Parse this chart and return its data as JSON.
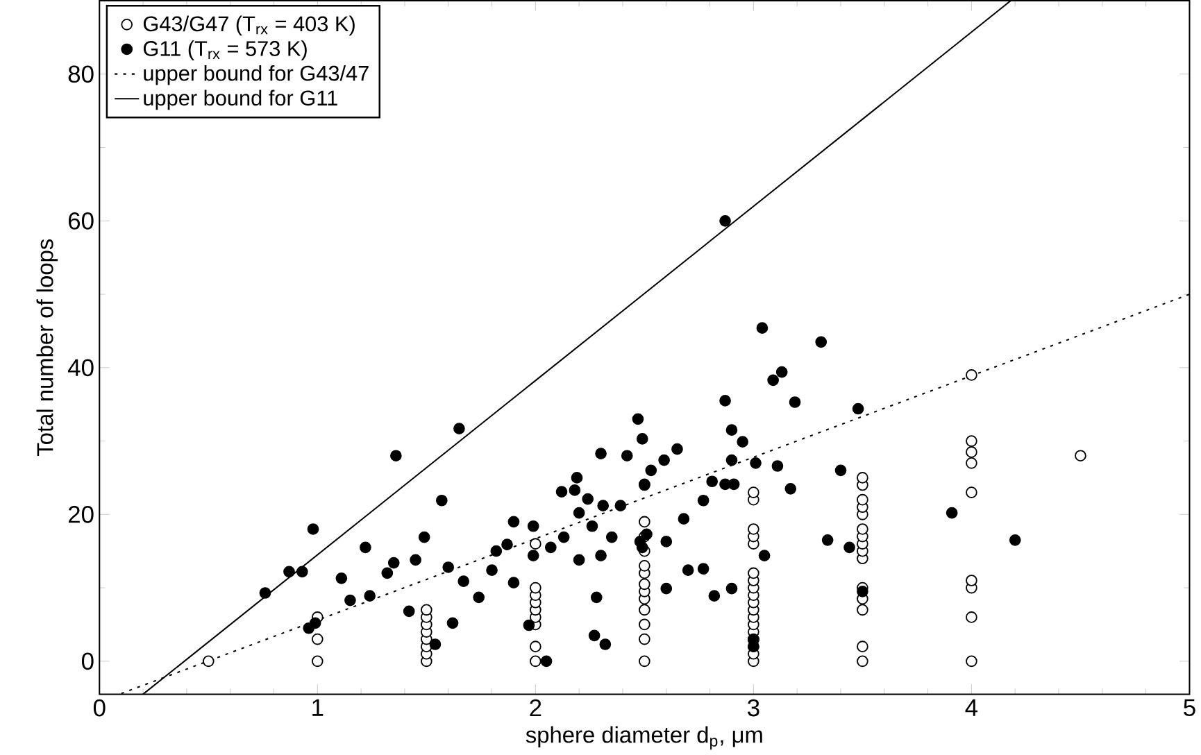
{
  "chart_data": {
    "type": "scatter",
    "xlabel": "sphere diameter d$_{p}$, μm",
    "ylabel": "Total number of loops",
    "xlim": [
      0,
      5
    ],
    "ylim": [
      -4.5,
      90
    ],
    "xticks": [
      0,
      1,
      2,
      3,
      4,
      5
    ],
    "yticks": [
      0,
      20,
      40,
      60,
      80
    ],
    "legend": "top left",
    "marker": "circle",
    "series": [
      {
        "name": "G43/G47 (T$_{rx}$ = 403 K)",
        "color": "#000000",
        "x": [
          0.5,
          1,
          1,
          1,
          1.5,
          1.5,
          1.5,
          1.5,
          1.5,
          1.5,
          1.5,
          1.5,
          2,
          2,
          2,
          2,
          2,
          2,
          2,
          2,
          2,
          2.5,
          2.5,
          2.5,
          2.5,
          2.5,
          2.5,
          2.5,
          2.5,
          2.5,
          2.5,
          2.5,
          2.5,
          2.5,
          3,
          3,
          3,
          3,
          3,
          3,
          3,
          3,
          3,
          3,
          3,
          3,
          3,
          3,
          3,
          3,
          3,
          3,
          3.5,
          3.5,
          3.5,
          3.5,
          3.5,
          3.5,
          3.5,
          3.5,
          3.5,
          3.5,
          3.5,
          3.5,
          3.5,
          3.5,
          3.5,
          4,
          4,
          4,
          4,
          4,
          4,
          4,
          4,
          4,
          4.5
        ],
        "values": [
          0,
          0,
          3,
          6,
          0,
          1,
          2,
          3,
          4,
          5,
          6,
          7,
          0,
          2,
          5,
          6,
          7,
          8,
          9,
          10,
          16,
          0,
          3,
          5,
          7,
          8.5,
          9.5,
          10.5,
          12,
          13,
          15,
          17,
          19,
          24,
          0,
          1,
          2,
          3,
          4,
          5,
          6,
          7,
          8,
          9,
          10,
          11,
          12,
          16,
          17,
          18,
          22,
          23,
          0,
          2,
          7,
          8.5,
          10,
          14,
          15,
          16,
          17,
          18,
          20,
          21,
          22,
          24,
          25,
          0,
          6,
          10,
          11,
          23,
          27,
          28.5,
          30,
          39,
          28
        ]
      },
      {
        "name": "G11 (T$_{rx}$ = 573 K)",
        "color": "#000000",
        "x": [
          0.76,
          0.87,
          0.93,
          0.98,
          0.96,
          0.99,
          1.11,
          1.15,
          1.22,
          1.24,
          1.32,
          1.35,
          1.36,
          1.42,
          1.45,
          1.49,
          1.57,
          1.6,
          1.54,
          1.62,
          1.65,
          1.67,
          1.74,
          1.8,
          1.82,
          1.87,
          1.9,
          1.9,
          1.99,
          1.99,
          1.97,
          2.05,
          2.07,
          2.13,
          2.12,
          2.19,
          2.18,
          2.24,
          2.2,
          2.26,
          2.2,
          2.28,
          2.27,
          2.32,
          2.3,
          2.3,
          2.31,
          2.35,
          2.39,
          2.42,
          2.47,
          2.49,
          2.53,
          2.5,
          2.59,
          2.65,
          2.48,
          2.51,
          2.49,
          2.6,
          2.6,
          2.68,
          2.7,
          2.77,
          2.77,
          2.81,
          2.87,
          2.91,
          2.82,
          2.9,
          2.87,
          2.9,
          2.95,
          2.9,
          3.01,
          3.09,
          3.13,
          3.19,
          3.11,
          3.17,
          3.05,
          3.0,
          3.0,
          3.0,
          3.04,
          3.31,
          3.48,
          3.4,
          3.34,
          3.44,
          3.5,
          3.91,
          4.2,
          2.87
        ],
        "values": [
          9.3,
          12.2,
          12.2,
          18,
          4.5,
          5.2,
          11.3,
          8.3,
          15.5,
          8.9,
          12,
          13.4,
          28,
          6.8,
          13.8,
          16.9,
          21.9,
          12.8,
          2.3,
          5.2,
          31.7,
          10.9,
          8.7,
          12.4,
          15,
          15.9,
          19,
          10.7,
          18.4,
          14.4,
          4.9,
          0,
          15.5,
          16.9,
          23.1,
          25,
          23.3,
          22.1,
          20.2,
          18.4,
          13.8,
          8.7,
          3.5,
          2.3,
          28.3,
          14.4,
          21.2,
          16.9,
          21.2,
          28,
          33,
          30.3,
          26,
          24.1,
          27.4,
          28.9,
          16.3,
          17.3,
          15.5,
          16.3,
          9.9,
          19.4,
          12.4,
          12.6,
          21.9,
          24.5,
          24.1,
          24.1,
          8.9,
          9.9,
          35.5,
          31.5,
          29.9,
          27.4,
          27,
          38.3,
          39.4,
          35.3,
          26.6,
          23.5,
          14.4,
          2.9,
          3,
          2,
          45.4,
          43.5,
          34.4,
          26,
          16.5,
          15.5,
          9.5,
          20.2,
          16.5,
          60
        ]
      },
      {
        "name": "upper bound for G43/47",
        "type": "line",
        "line_style": "dotted",
        "marker": "none",
        "color": "#000000",
        "x": [
          0.1,
          5
        ],
        "values": [
          -4.4,
          50
        ]
      },
      {
        "name": "upper bound for G11",
        "type": "line",
        "line_style": "solid",
        "marker": "none",
        "color": "#000000",
        "x": [
          0.2,
          4.18
        ],
        "values": [
          -4.5,
          90
        ]
      }
    ]
  }
}
